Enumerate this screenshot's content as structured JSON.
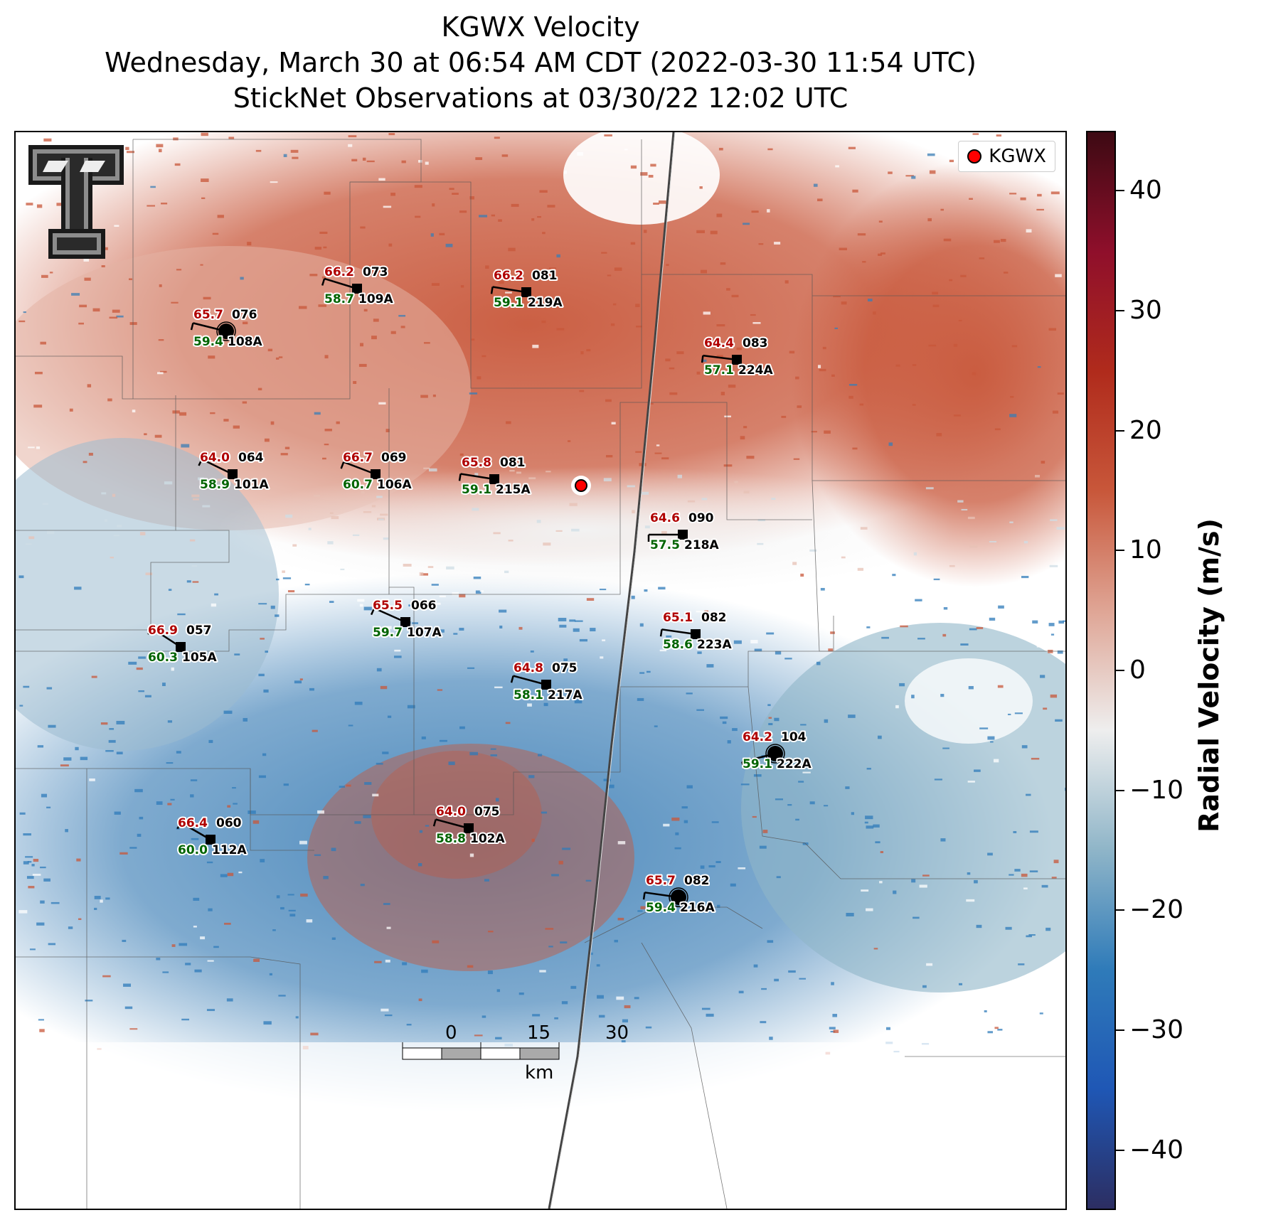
{
  "title_lines": [
    "KGWX Velocity",
    "Wednesday, March 30 at 06:54 AM CDT (2022-03-30 11:54 UTC)",
    "StickNet Observations at 03/30/22 12:02 UTC"
  ],
  "legend": {
    "label": "KGWX",
    "marker_color": "#ff0000"
  },
  "colorbar": {
    "label": "Radial Velocity (m/s)",
    "min": -45,
    "max": 45,
    "ticks": [
      "40",
      "30",
      "20",
      "10",
      "0",
      "−10",
      "−20",
      "−30",
      "−40"
    ],
    "colors": [
      "#2c2e62",
      "#1f57b5",
      "#2f7bb9",
      "#8fb5c8",
      "#eeeeee",
      "#dfa595",
      "#c8573a",
      "#b02b1c",
      "#8f0f2b",
      "#3d0a13"
    ]
  },
  "logo": {
    "name": "Texas Tech Double T",
    "text": "TT"
  },
  "scale_bar": {
    "labels": [
      "0",
      "15",
      "30"
    ],
    "unit": "km"
  },
  "stations": [
    {
      "id": "109A",
      "temp": "66.2",
      "dew": "58.7",
      "dir": "073"
    },
    {
      "id": "219A",
      "temp": "66.2",
      "dew": "59.1",
      "dir": "081"
    },
    {
      "id": "108A",
      "temp": "65.7",
      "dew": "59.4",
      "dir": "076"
    },
    {
      "id": "224A",
      "temp": "64.4",
      "dew": "57.1",
      "dir": "083"
    },
    {
      "id": "101A",
      "temp": "64.0",
      "dew": "58.9",
      "dir": "064"
    },
    {
      "id": "106A",
      "temp": "66.7",
      "dew": "60.7",
      "dir": "069"
    },
    {
      "id": "215A",
      "temp": "65.8",
      "dew": "59.1",
      "dir": "081"
    },
    {
      "id": "218A",
      "temp": "64.6",
      "dew": "57.5",
      "dir": "090"
    },
    {
      "id": "107A",
      "temp": "65.5",
      "dew": "59.7",
      "dir": "066"
    },
    {
      "id": "105A",
      "temp": "66.9",
      "dew": "60.3",
      "dir": "057"
    },
    {
      "id": "223A",
      "temp": "65.1",
      "dew": "58.6",
      "dir": "082"
    },
    {
      "id": "217A",
      "temp": "64.8",
      "dew": "58.1",
      "dir": "075"
    },
    {
      "id": "222A",
      "temp": "64.2",
      "dew": "59.1",
      "dir": "104"
    },
    {
      "id": "102A",
      "temp": "64.0",
      "dew": "58.8",
      "dir": "075"
    },
    {
      "id": "112A",
      "temp": "66.4",
      "dew": "60.0",
      "dir": "060"
    },
    {
      "id": "216A",
      "temp": "65.7",
      "dew": "59.4",
      "dir": "082"
    }
  ],
  "colors": {
    "temp": "#b00000",
    "dew": "#006400",
    "station": "#000000"
  }
}
